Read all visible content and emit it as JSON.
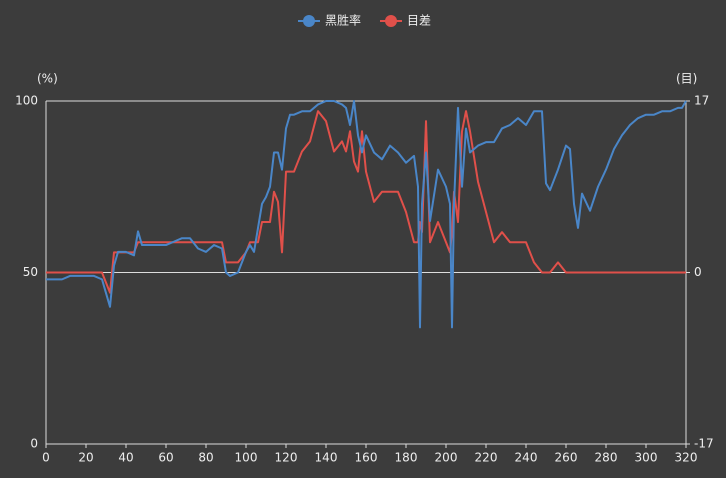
{
  "chart_data": {
    "type": "line",
    "y_label": "(%)",
    "y2_label": "(目)",
    "x": [
      0,
      4,
      8,
      12,
      16,
      20,
      24,
      28,
      30,
      32,
      34,
      36,
      40,
      44,
      46,
      48,
      52,
      56,
      60,
      64,
      68,
      72,
      76,
      80,
      84,
      88,
      90,
      92,
      96,
      100,
      102,
      104,
      106,
      108,
      110,
      112,
      114,
      116,
      118,
      120,
      122,
      124,
      128,
      132,
      136,
      140,
      144,
      148,
      150,
      152,
      154,
      156,
      158,
      160,
      164,
      168,
      172,
      176,
      180,
      184,
      186,
      187,
      188,
      190,
      192,
      196,
      200,
      202,
      203,
      204,
      206,
      208,
      210,
      212,
      216,
      220,
      224,
      228,
      232,
      236,
      240,
      244,
      248,
      250,
      252,
      256,
      260,
      262,
      264,
      266,
      268,
      272,
      276,
      280,
      284,
      288,
      292,
      296,
      300,
      304,
      308,
      312,
      316,
      318,
      320
    ],
    "series": [
      {
        "name": "黑胜率",
        "color": "#4a86c8",
        "values": [
          48,
          48,
          48,
          49,
          49,
          49,
          49,
          48,
          44,
          40,
          52,
          56,
          56,
          55,
          62,
          58,
          58,
          58,
          58,
          59,
          60,
          60,
          57,
          56,
          58,
          57,
          50,
          49,
          50,
          56,
          58,
          56,
          63,
          70,
          72,
          75,
          85,
          85,
          80,
          92,
          96,
          96,
          97,
          97,
          99,
          100,
          100,
          99,
          98,
          93,
          100,
          90,
          85,
          90,
          85,
          83,
          87,
          85,
          82,
          84,
          75,
          34,
          70,
          85,
          65,
          80,
          75,
          70,
          34,
          70,
          98,
          75,
          92,
          85,
          87,
          88,
          88,
          92,
          93,
          95,
          93,
          97,
          97,
          76,
          74,
          80,
          87,
          86,
          70,
          63,
          73,
          68,
          75,
          80,
          86,
          90,
          93,
          95,
          96,
          96,
          97,
          97,
          98,
          98,
          100
        ]
      },
      {
        "name": "目差",
        "color": "#e0504a",
        "axis": "y2",
        "values": [
          0,
          0,
          0,
          0,
          0,
          0,
          0,
          0,
          -1,
          -2,
          2,
          2,
          2,
          2,
          3,
          3,
          3,
          3,
          3,
          3,
          3,
          3,
          3,
          3,
          3,
          3,
          1,
          1,
          1,
          2,
          3,
          3,
          3,
          5,
          5,
          5,
          8,
          7,
          2,
          10,
          10,
          10,
          12,
          13,
          16,
          15,
          12,
          13,
          12,
          14,
          11,
          10,
          14,
          10,
          7,
          8,
          8,
          8,
          6,
          3,
          3,
          5,
          4,
          15,
          3,
          5,
          3,
          2,
          4,
          8,
          5,
          14,
          16,
          14,
          9,
          6,
          3,
          4,
          3,
          3,
          3,
          1,
          0,
          0,
          0,
          1,
          0,
          0,
          0,
          0,
          0,
          0,
          0,
          0,
          0,
          0,
          0,
          0,
          0,
          0,
          0,
          0,
          0,
          0,
          0
        ]
      }
    ],
    "xlim": [
      0,
      320
    ],
    "xticks": [
      0,
      20,
      40,
      60,
      80,
      100,
      120,
      140,
      160,
      180,
      200,
      220,
      240,
      260,
      280,
      300,
      320
    ],
    "ylim": [
      0,
      100
    ],
    "yticks": [
      0,
      50,
      100
    ],
    "y2lim": [
      -17,
      17
    ],
    "y2ticks": [
      -17,
      0,
      17
    ],
    "grid": true
  }
}
